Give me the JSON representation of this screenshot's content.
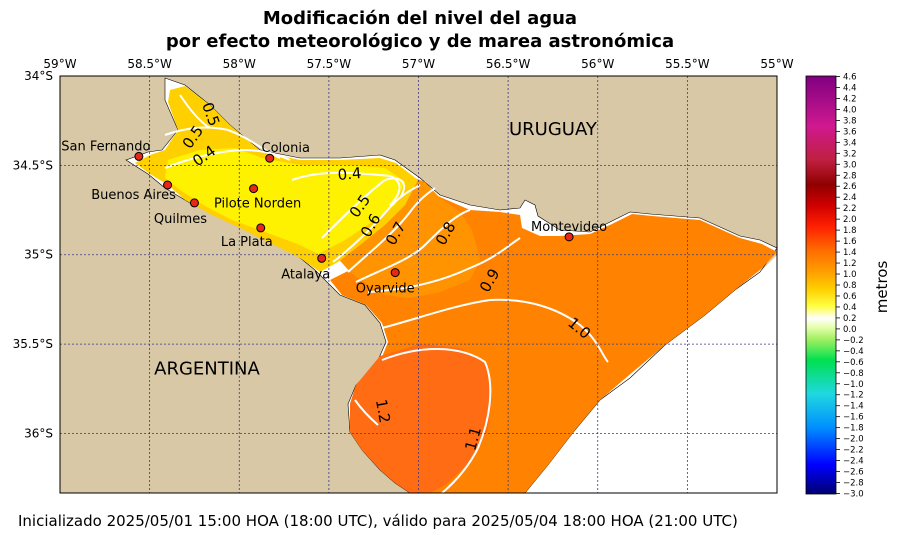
{
  "title_line1": "Modificación del nivel del agua",
  "title_line2": "por efecto meteorológico y de marea astronómica",
  "footer": "Inicializado 2025/05/01 15:00 HOA (18:00 UTC), válido para 2025/05/04 18:00 HOA (21:00 UTC)",
  "lon_ticks": [
    {
      "label": "59°W",
      "value": -59.0
    },
    {
      "label": "58.5°W",
      "value": -58.5
    },
    {
      "label": "58°W",
      "value": -58.0
    },
    {
      "label": "57.5°W",
      "value": -57.5
    },
    {
      "label": "57°W",
      "value": -57.0
    },
    {
      "label": "56.5°W",
      "value": -56.5
    },
    {
      "label": "56°W",
      "value": -56.0
    },
    {
      "label": "55.5°W",
      "value": -55.5
    },
    {
      "label": "55°W",
      "value": -55.0
    }
  ],
  "lat_ticks": [
    {
      "label": "34°S",
      "value": -34.0
    },
    {
      "label": "34.5°S",
      "value": -34.5
    },
    {
      "label": "35°S",
      "value": -35.0
    },
    {
      "label": "35.5°S",
      "value": -35.5
    },
    {
      "label": "36°S",
      "value": -36.0
    }
  ],
  "regions": [
    {
      "label": "URUGUAY",
      "lon": -56.25,
      "lat": -34.33
    },
    {
      "label": "ARGENTINA",
      "lon": -58.18,
      "lat": -35.67
    }
  ],
  "stations": [
    {
      "label": "San Fernando",
      "lon": -58.56,
      "lat": -34.45
    },
    {
      "label": "Buenos Aires",
      "lon": -58.4,
      "lat": -34.61
    },
    {
      "label": "Quilmes",
      "lon": -58.25,
      "lat": -34.71
    },
    {
      "label": "Pilote Norden",
      "lon": -57.92,
      "lat": -34.63
    },
    {
      "label": "Colonia",
      "lon": -57.83,
      "lat": -34.46
    },
    {
      "label": "La Plata",
      "lon": -57.88,
      "lat": -34.85
    },
    {
      "label": "Atalaya",
      "lon": -57.54,
      "lat": -35.02
    },
    {
      "label": "Oyarvide",
      "lon": -57.13,
      "lat": -35.1
    },
    {
      "label": "Montevideo",
      "lon": -56.16,
      "lat": -34.9
    }
  ],
  "contour_labels": [
    "0.5",
    "0.5",
    "0.4",
    "0.4",
    "0.5",
    "0.6",
    "0.7",
    "0.8",
    "0.9",
    "1.0",
    "1.2",
    "1.1"
  ],
  "colorbar": {
    "unit_label": "metros",
    "ticks": [
      "4.6",
      "4.4",
      "4.2",
      "4.0",
      "3.8",
      "3.6",
      "3.4",
      "3.2",
      "3.0",
      "2.8",
      "2.6",
      "2.4",
      "2.2",
      "2.0",
      "1.8",
      "1.6",
      "1.4",
      "1.2",
      "1.0",
      "0.8",
      "0.6",
      "0.4",
      "0.2",
      "0.0",
      "−0.2",
      "−0.4",
      "−0.6",
      "−0.8",
      "−1.0",
      "−1.2",
      "−1.4",
      "−1.6",
      "−1.8",
      "−2.0",
      "−2.2",
      "−2.4",
      "−2.6",
      "−2.8",
      "−3.0"
    ],
    "min": -3.0,
    "max": 4.6
  },
  "colors": {
    "land": "#d8c8a6",
    "ocean": "#ffffff",
    "level_04": "#fff200",
    "level_05": "#ffd000",
    "level_08": "#ff9400",
    "level_10": "#ff8300",
    "level_12": "#ff6c14",
    "station": "#e8261c",
    "grid": "#3a3a8a"
  }
}
